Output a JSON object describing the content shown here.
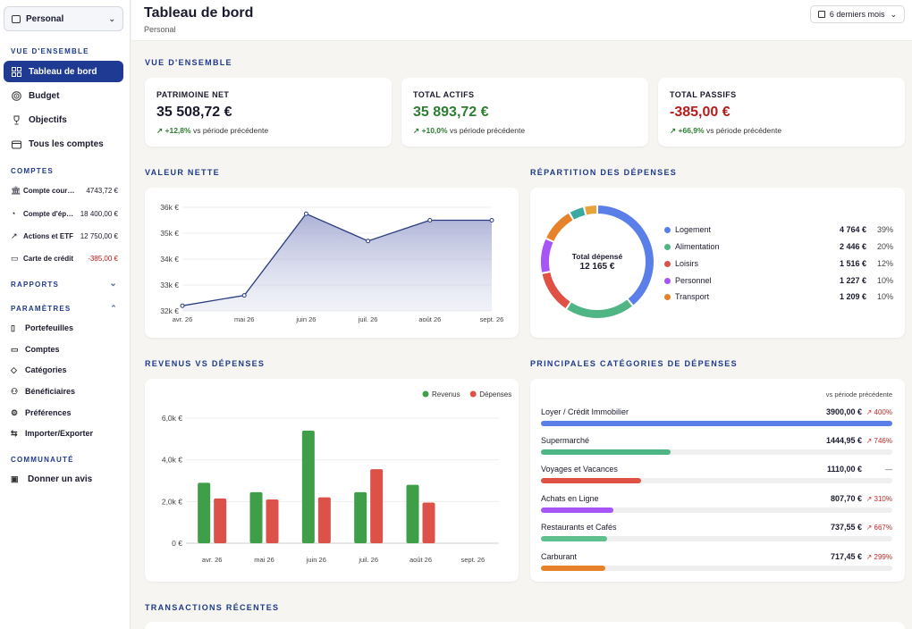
{
  "sidebar": {
    "workspace": "Personal",
    "sections": {
      "overview": "VUE D'ENSEMBLE",
      "accounts": "COMPTES",
      "reports": "RAPPORTS",
      "settings": "PARAMÈTRES",
      "community": "COMMUNAUTÉ"
    },
    "nav": [
      {
        "label": "Tableau de bord",
        "icon": "dashboard-icon"
      },
      {
        "label": "Budget",
        "icon": "target-icon"
      },
      {
        "label": "Objectifs",
        "icon": "trophy-icon"
      },
      {
        "label": "Tous les comptes",
        "icon": "wallet-icon"
      }
    ],
    "accounts": [
      {
        "name": "Compte courant",
        "balance": "4743,72 €",
        "negative": false
      },
      {
        "name": "Compte d'épargne",
        "balance": "18 400,00 €",
        "negative": false
      },
      {
        "name": "Actions et ETF",
        "balance": "12 750,00 €",
        "negative": false
      },
      {
        "name": "Carte de crédit",
        "balance": "-385,00 €",
        "negative": true
      }
    ],
    "settings_items": [
      "Portefeuilles",
      "Comptes",
      "Catégories",
      "Bénéficiaires",
      "Préférences",
      "Importer/Exporter"
    ],
    "community_item": "Donner un avis"
  },
  "header": {
    "title": "Tableau de bord",
    "subtitle": "Personal",
    "period": "6 derniers mois"
  },
  "sections": {
    "overview": "VUE D'ENSEMBLE",
    "net_worth": "VALEUR NETTE",
    "spending_breakdown": "RÉPARTITION DES DÉPENSES",
    "income_vs_expenses": "REVENUS VS DÉPENSES",
    "top_categories": "PRINCIPALES CATÉGORIES DE DÉPENSES",
    "recent_transactions": "TRANSACTIONS RÉCENTES"
  },
  "kpis": [
    {
      "label": "PATRIMOINE NET",
      "value": "35 508,72 €",
      "delta": "+12,8%",
      "suffix": "vs période précédente",
      "tone": "neutral"
    },
    {
      "label": "TOTAL ACTIFS",
      "value": "35 893,72 €",
      "delta": "+10,0%",
      "suffix": "vs période précédente",
      "tone": "green"
    },
    {
      "label": "TOTAL PASSIFS",
      "value": "-385,00 €",
      "delta": "+66,9%",
      "suffix": "vs période précédente",
      "tone": "red"
    }
  ],
  "donut": {
    "center_label": "Total dépensé",
    "center_value": "12 165 €",
    "items": [
      {
        "name": "Logement",
        "amount": "4 764 €",
        "pct": "39%",
        "value": 4764,
        "color": "#5b7fe8"
      },
      {
        "name": "Alimentation",
        "amount": "2 446 €",
        "pct": "20%",
        "value": 2446,
        "color": "#4fb584"
      },
      {
        "name": "Loisirs",
        "amount": "1 516 €",
        "pct": "12%",
        "value": 1516,
        "color": "#df5045"
      },
      {
        "name": "Personnel",
        "amount": "1 227 €",
        "pct": "10%",
        "value": 1227,
        "color": "#a855f7"
      },
      {
        "name": "Transport",
        "amount": "1 209 €",
        "pct": "10%",
        "value": 1209,
        "color": "#e6822a"
      }
    ],
    "other_slices": [
      {
        "value": 540,
        "color": "#3aa9a0"
      },
      {
        "value": 463,
        "color": "#e8a33a"
      }
    ]
  },
  "top_categories": {
    "header": "vs période précédente",
    "items": [
      {
        "name": "Loyer / Crédit Immobilier",
        "amount": "3900,00 €",
        "change": "↗ 400%",
        "fill": 1.0,
        "color": "#5b7fe8"
      },
      {
        "name": "Supermarché",
        "amount": "1444,95 €",
        "change": "↗ 746%",
        "fill": 0.37,
        "color": "#4fb584"
      },
      {
        "name": "Voyages et Vacances",
        "amount": "1110,00 €",
        "change": "—",
        "fill": 0.285,
        "color": "#df5045"
      },
      {
        "name": "Achats en Ligne",
        "amount": "807,70 €",
        "change": "↗ 310%",
        "fill": 0.207,
        "color": "#a855f7"
      },
      {
        "name": "Restaurants et Cafés",
        "amount": "737,55 €",
        "change": "↗ 667%",
        "fill": 0.189,
        "color": "#5fc08f"
      },
      {
        "name": "Carburant",
        "amount": "717,45 €",
        "change": "↗ 299%",
        "fill": 0.184,
        "color": "#e6822a"
      }
    ]
  },
  "chart_data": [
    {
      "type": "area",
      "title": "VALEUR NETTE",
      "categories": [
        "avr. 26",
        "mai 26",
        "juin 26",
        "juil. 26",
        "août 26",
        "sept. 26"
      ],
      "values": [
        32200,
        32600,
        35750,
        34700,
        35500,
        35500
      ],
      "yticks": [
        "32k €",
        "33k €",
        "34k €",
        "35k €",
        "36k €"
      ],
      "ylim": [
        32000,
        36000
      ],
      "color": "#2a3b7e"
    },
    {
      "type": "bar",
      "title": "REVENUS VS DÉPENSES",
      "categories": [
        "avr. 26",
        "mai 26",
        "juin 26",
        "juil. 26",
        "août 26",
        "sept. 26"
      ],
      "series": [
        {
          "name": "Revenus",
          "values": [
            2900,
            2450,
            5400,
            2450,
            2800,
            0
          ],
          "color": "#3f9e48"
        },
        {
          "name": "Dépenses",
          "values": [
            2150,
            2100,
            2200,
            3550,
            1950,
            0
          ],
          "color": "#dc5248"
        }
      ],
      "yticks": [
        "0 €",
        "2,0k €",
        "4,0k €",
        "6,0k €"
      ],
      "ylim": [
        0,
        6000
      ],
      "legend": "top-right"
    }
  ]
}
